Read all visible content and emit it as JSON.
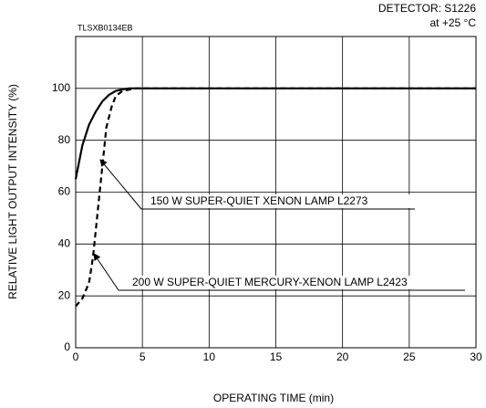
{
  "chart_data": {
    "type": "line",
    "code": "TLSXB0134EB",
    "subtitle": [
      "DETECTOR: S1226",
      "at +25 °C"
    ],
    "xlabel": "OPERATING TIME (min)",
    "ylabel": "RELATIVE LIGHT OUTPUT INTENSITY (%)",
    "xlim": [
      0,
      30
    ],
    "xticks": [
      0,
      5,
      10,
      15,
      20,
      25,
      30
    ],
    "ylim": [
      0,
      120
    ],
    "yticks": [
      0,
      20,
      40,
      60,
      80,
      100
    ],
    "grid": true,
    "series": [
      {
        "color": "#000000",
        "dash": false,
        "x": [
          0,
          0.5,
          1,
          1.5,
          2,
          2.5,
          3,
          3.5,
          4,
          30
        ],
        "values": [
          65,
          78,
          86,
          91,
          95,
          97.5,
          99,
          99.6,
          100,
          100
        ]
      },
      {
        "color": "#000000",
        "dash": true,
        "x": [
          0,
          0.5,
          1,
          1.3,
          1.6,
          2,
          2.3,
          2.7,
          3,
          3.5,
          4.5,
          30
        ],
        "values": [
          16,
          19,
          25,
          35,
          50,
          70,
          85,
          93,
          97,
          99,
          100,
          100
        ]
      }
    ],
    "annotations": [
      "150 W SUPER-QUIET XENON LAMP L2273",
      "200 W SUPER-QUIET MERCURY-XENON LAMP L2423"
    ]
  }
}
